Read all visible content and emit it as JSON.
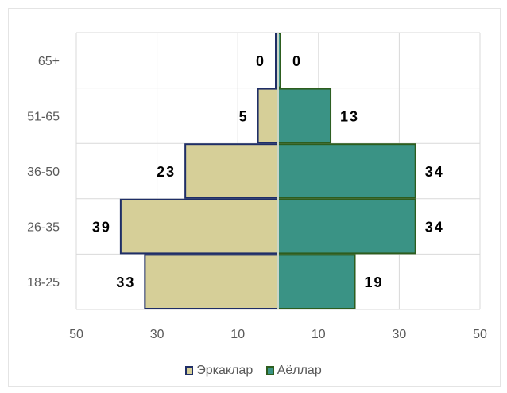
{
  "chart_data": {
    "type": "bar",
    "orientation": "horizontal",
    "subtype": "population-pyramid",
    "categories": [
      "65+",
      "51-65",
      "36-50",
      "26-35",
      "18-25"
    ],
    "series": [
      {
        "name": "Эркаклар",
        "side": "left",
        "values": [
          0,
          5,
          23,
          39,
          33
        ],
        "labels": [
          "0",
          "5",
          "23",
          "39",
          "33"
        ],
        "fill": "#d6cf98",
        "stroke": "#1f2e66"
      },
      {
        "name": "Аёллар",
        "side": "right",
        "values": [
          0,
          13,
          34,
          34,
          19
        ],
        "labels": [
          "0",
          "13",
          "34",
          "34",
          "19"
        ],
        "fill": "#3a9385",
        "stroke": "#2d5d1e"
      }
    ],
    "x_ticks": [
      "50",
      "30",
      "10",
      "10",
      "30",
      "50"
    ],
    "xlim": [
      -50,
      50
    ],
    "grid": true,
    "legend_position": "bottom"
  }
}
